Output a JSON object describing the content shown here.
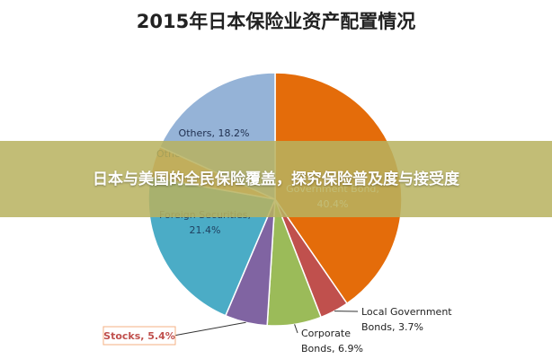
{
  "chart_data": {
    "type": "pie",
    "title": "2015年日本保险业资产配置情况",
    "slices": [
      {
        "name": "Government Bond",
        "value": 40.4,
        "color": "#E46C0A",
        "label_lines": [
          "Government Bond,",
          "40.4%"
        ]
      },
      {
        "name": "Local Government Bonds",
        "value": 3.7,
        "color": "#C0504D",
        "label_lines": [
          "Local Government",
          "Bonds, 3.7%"
        ]
      },
      {
        "name": "Corporate Bonds",
        "value": 6.9,
        "color": "#9BBB59",
        "label_lines": [
          "Corporate",
          "Bonds, 6.9%"
        ]
      },
      {
        "name": "Stocks",
        "value": 5.4,
        "color": "#8064A2",
        "label_lines": [
          "Stocks, 5.4%"
        ]
      },
      {
        "name": "Foreign Securities",
        "value": 21.4,
        "color": "#4BACC6",
        "label_lines": [
          "Foreign Securities,",
          "21.4%"
        ]
      },
      {
        "name": "Other Securities",
        "value": 4.0,
        "color": "#F79646",
        "label_lines": [
          "Other Securities"
        ]
      },
      {
        "name": "Others",
        "value": 18.2,
        "color": "#95B3D7",
        "label_lines": [
          "Others, 18.2%"
        ]
      }
    ]
  },
  "overlay": {
    "banner_text": "日本与美国的全民保险覆盖，探究保险普及度与接受度"
  }
}
